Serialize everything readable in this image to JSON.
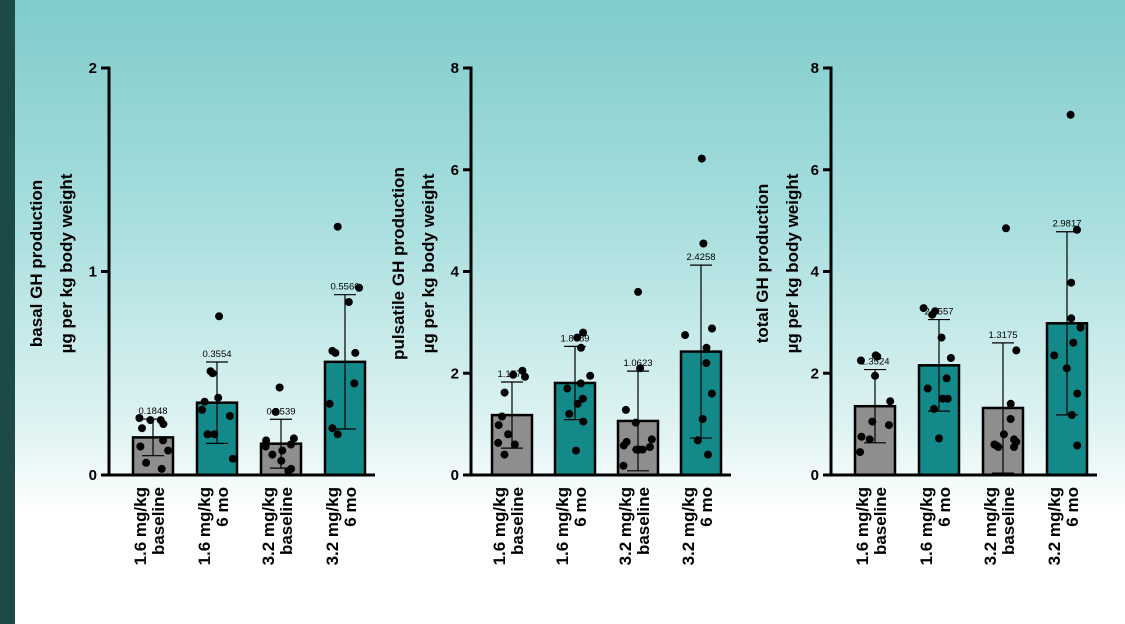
{
  "colors": {
    "baseline": "#8e8e8e",
    "six_mo": "#13898a",
    "sidebar": "#1b4a47"
  },
  "chart_data": [
    {
      "type": "bar",
      "ylabel": [
        "basal GH production",
        "µg per kg body weight"
      ],
      "ylim": [
        0,
        2
      ],
      "yticks": [
        0,
        1,
        2
      ],
      "categories": [
        [
          "1.6 mg/kg",
          "baseline"
        ],
        [
          "1.6 mg/kg",
          "6 mo"
        ],
        [
          "3.2 mg/kg",
          "baseline"
        ],
        [
          "3.2 mg/kg",
          "6 mo"
        ]
      ],
      "values": [
        0.1848,
        0.3554,
        0.1539,
        0.556
      ],
      "value_labels": [
        "0.1848",
        "0.3554",
        "0.1539",
        "0.5560"
      ],
      "sd": [
        0.09,
        0.2,
        0.12,
        0.33
      ],
      "points": [
        [
          0.27,
          0.28,
          0.27,
          0.25,
          0.23,
          0.17,
          0.14,
          0.12,
          0.06,
          0.03
        ],
        [
          0.78,
          0.5,
          0.51,
          0.38,
          0.36,
          0.32,
          0.29,
          0.2,
          0.2,
          0.08,
          0.2
        ],
        [
          0.43,
          0.31,
          0.18,
          0.17,
          0.15,
          0.14,
          0.12,
          0.1,
          0.07,
          0.03,
          0.02
        ],
        [
          1.22,
          0.92,
          0.85,
          0.61,
          0.6,
          0.6,
          0.45,
          0.35,
          0.23,
          0.2
        ]
      ]
    },
    {
      "type": "bar",
      "ylabel": [
        "pulsatile GH production",
        "µg per kg body weight"
      ],
      "ylim": [
        0,
        8
      ],
      "yticks": [
        0,
        2,
        4,
        6,
        8
      ],
      "categories": [
        [
          "1.6 mg/kg",
          "baseline"
        ],
        [
          "1.6 mg/kg",
          "6 mo"
        ],
        [
          "3.2 mg/kg",
          "baseline"
        ],
        [
          "3.2 mg/kg",
          "6 mo"
        ]
      ],
      "values": [
        1.1776,
        1.8089,
        1.0623,
        2.4258
      ],
      "value_labels": [
        "1.1776",
        "1.8089",
        "1.0623",
        "2.4258"
      ],
      "sd": [
        0.65,
        0.72,
        0.98,
        1.7
      ],
      "points": [
        [
          2.05,
          1.97,
          1.93,
          1.62,
          1.15,
          0.98,
          0.8,
          0.63,
          0.6,
          0.4
        ],
        [
          2.8,
          2.7,
          2.5,
          1.95,
          1.8,
          1.7,
          1.5,
          1.4,
          1.2,
          1.05,
          0.48
        ],
        [
          3.6,
          2.1,
          1.28,
          1.03,
          0.7,
          0.65,
          0.58,
          0.55,
          0.5,
          0.5,
          0.5,
          0.18
        ],
        [
          6.22,
          4.55,
          2.88,
          2.75,
          2.5,
          2.2,
          1.6,
          1.1,
          0.68,
          0.4
        ]
      ]
    },
    {
      "type": "bar",
      "ylabel": [
        "total GH production",
        "µg per kg body weight"
      ],
      "ylim": [
        0,
        8
      ],
      "yticks": [
        0,
        2,
        4,
        6,
        8
      ],
      "categories": [
        [
          "1.6 mg/kg",
          "baseline"
        ],
        [
          "1.6 mg/kg",
          "6 mo"
        ],
        [
          "3.2 mg/kg",
          "baseline"
        ],
        [
          "3.2 mg/kg",
          "6 mo"
        ]
      ],
      "values": [
        1.3524,
        2.1557,
        1.3175,
        2.9817
      ],
      "value_labels": [
        "1.3524",
        "2.1557",
        "1.3175",
        "2.9817"
      ],
      "sd": [
        0.72,
        0.9,
        1.28,
        1.8
      ],
      "points": [
        [
          2.35,
          2.33,
          2.25,
          1.95,
          1.45,
          1.05,
          0.98,
          0.75,
          0.7,
          0.45
        ],
        [
          3.28,
          3.22,
          3.15,
          2.7,
          2.3,
          1.9,
          1.7,
          1.5,
          1.5,
          1.3,
          0.72
        ],
        [
          4.85,
          2.45,
          1.4,
          1.1,
          0.8,
          0.7,
          0.65,
          0.6,
          0.58,
          0.55,
          0.55
        ],
        [
          7.08,
          4.82,
          3.78,
          3.08,
          2.9,
          2.6,
          2.35,
          2.1,
          1.6,
          1.18,
          0.58
        ]
      ]
    }
  ]
}
